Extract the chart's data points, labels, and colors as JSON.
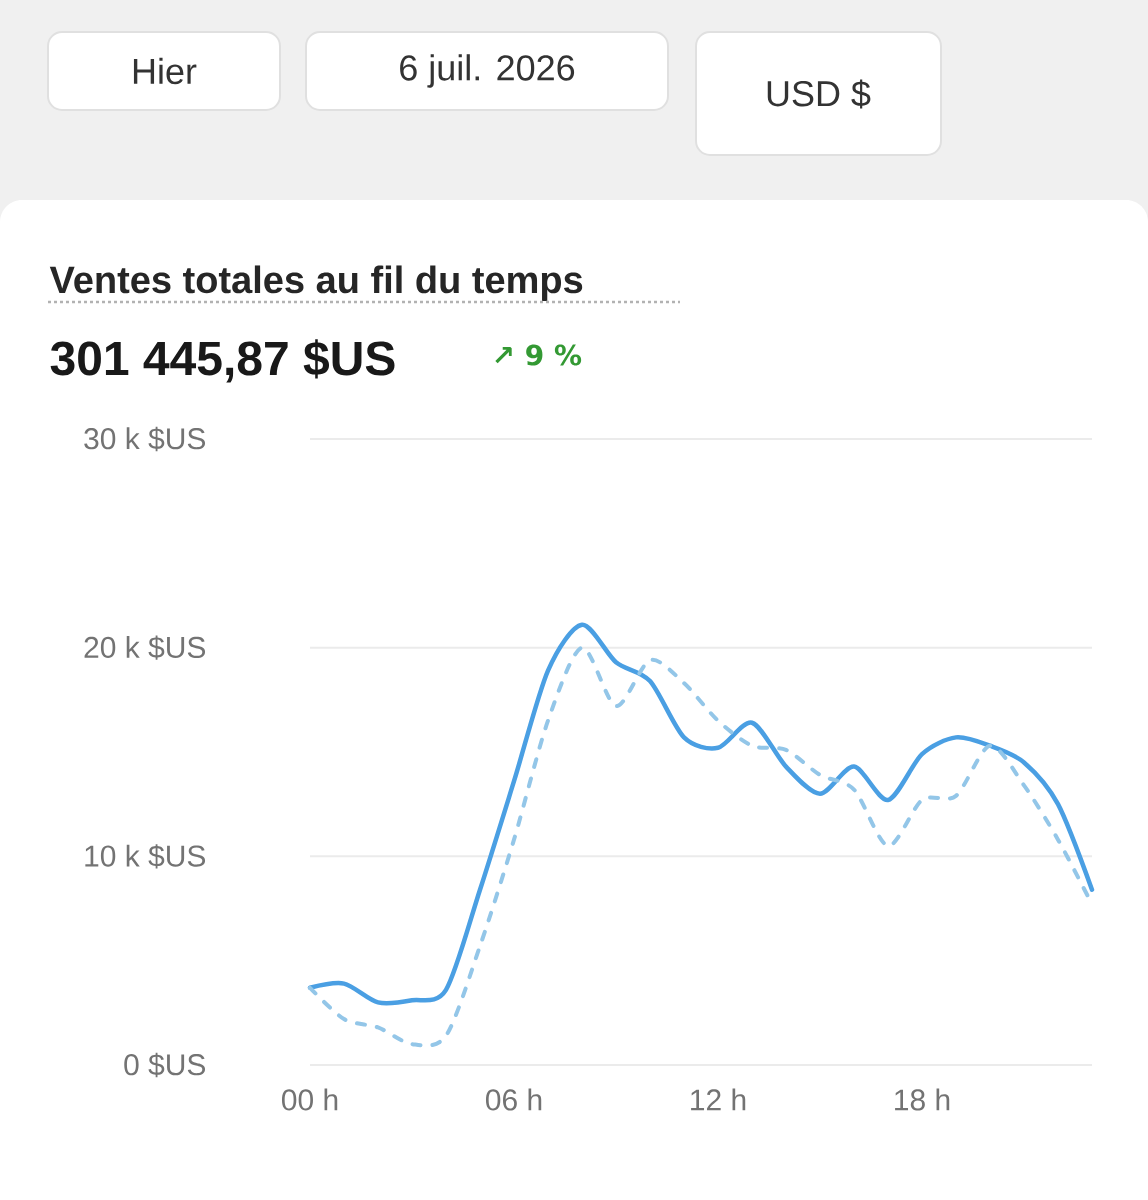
{
  "chart_data": {
    "type": "line",
    "title": "Ventes totales au fil du temps",
    "subtitle": "301 445,87 $US",
    "annotations": [
      "↗ 9 %",
      "Hier",
      "6 juil. 2026",
      "USD $"
    ],
    "x": [
      0,
      1,
      2,
      3,
      4,
      5,
      6,
      7,
      8,
      9,
      10,
      11,
      12,
      13,
      14,
      15,
      16,
      17,
      18,
      19,
      20,
      21,
      22,
      23
    ],
    "series": [
      {
        "color": "#4a9fe3",
        "line_style": "solid",
        "values": [
          3.7,
          3.9,
          3.0,
          3.1,
          3.6,
          8.4,
          13.6,
          18.9,
          21.1,
          19.3,
          18.4,
          15.7,
          15.2,
          16.4,
          14.3,
          13.0,
          14.3,
          12.7,
          14.9,
          15.7,
          15.3,
          14.5,
          12.5,
          8.4
        ]
      },
      {
        "color": "#93c6e8",
        "line_style": "dashed",
        "values": [
          3.7,
          2.2,
          1.8,
          1.0,
          1.4,
          5.7,
          10.8,
          16.5,
          20.0,
          17.2,
          19.4,
          18.3,
          16.5,
          15.3,
          15.1,
          13.9,
          13.2,
          10.5,
          12.7,
          12.9,
          15.3,
          13.4,
          10.8,
          7.7
        ]
      }
    ],
    "xlim": [
      0,
      23
    ],
    "xticks": [
      {
        "value": 0,
        "label": "00 h"
      },
      {
        "value": 6,
        "label": "06 h"
      },
      {
        "value": 12,
        "label": "12 h"
      },
      {
        "value": 18,
        "label": "18 h"
      }
    ],
    "ylim": [
      0,
      30
    ],
    "yticks": [
      {
        "value": 0,
        "label": "0 $US"
      },
      {
        "value": 10,
        "label": "10 k $US"
      },
      {
        "value": 20,
        "label": "20 k $US"
      },
      {
        "value": 30,
        "label": "30 k $US"
      }
    ],
    "grid": "y",
    "marker": "none"
  }
}
